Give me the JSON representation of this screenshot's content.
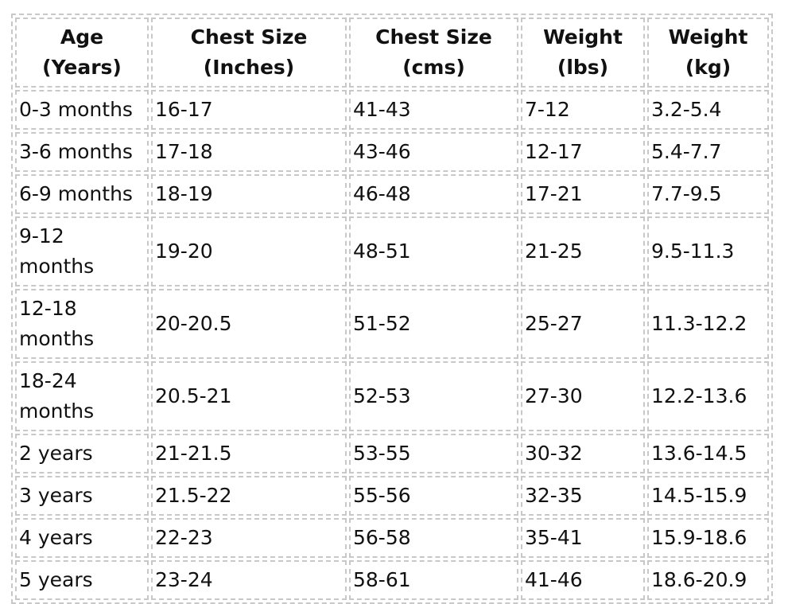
{
  "table": {
    "header": [
      "Age (Years)",
      "Chest Size (Inches)",
      "Chest Size (cms)",
      "Weight (lbs)",
      "Weight (kg)"
    ],
    "rows": [
      [
        "0-3 months",
        "16-17",
        "41-43",
        "7-12",
        "3.2-5.4"
      ],
      [
        "3-6 months",
        "17-18",
        "43-46",
        "12-17",
        "5.4-7.7"
      ],
      [
        "6-9 months",
        "18-19",
        "46-48",
        "17-21",
        "7.7-9.5"
      ],
      [
        "9-12 months",
        "19-20",
        "48-51",
        "21-25",
        "9.5-11.3"
      ],
      [
        "12-18 months",
        "20-20.5",
        "51-52",
        "25-27",
        "11.3-12.2"
      ],
      [
        "18-24 months",
        "20.5-21",
        "52-53",
        "27-30",
        "12.2-13.6"
      ],
      [
        "2 years",
        "21-21.5",
        "53-55",
        "30-32",
        "13.6-14.5"
      ],
      [
        "3 years",
        "21.5-22",
        "55-56",
        "32-35",
        "14.5-15.9"
      ],
      [
        "4 years",
        "22-23",
        "56-58",
        "35-41",
        "15.9-18.6"
      ],
      [
        "5 years",
        "23-24",
        "58-61",
        "41-46",
        "18.6-20.9"
      ]
    ]
  }
}
